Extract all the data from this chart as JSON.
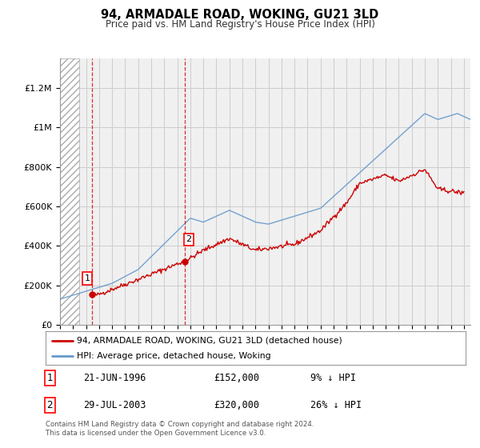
{
  "title": "94, ARMADALE ROAD, WOKING, GU21 3LD",
  "subtitle": "Price paid vs. HM Land Registry's House Price Index (HPI)",
  "ylabel_ticks": [
    "£0",
    "£200K",
    "£400K",
    "£600K",
    "£800K",
    "£1M",
    "£1.2M"
  ],
  "ytick_values": [
    0,
    200000,
    400000,
    600000,
    800000,
    1000000,
    1200000
  ],
  "ylim": [
    0,
    1350000
  ],
  "xlim_start": 1994.0,
  "xlim_end": 2025.5,
  "hatch_end_year": 1995.5,
  "sale1": {
    "year": 1996.47,
    "price": 152000,
    "label": "1"
  },
  "sale2": {
    "year": 2003.57,
    "price": 320000,
    "label": "2"
  },
  "legend_line1": "94, ARMADALE ROAD, WOKING, GU21 3LD (detached house)",
  "legend_line2": "HPI: Average price, detached house, Woking",
  "line_color_red": "#cc0000",
  "line_color_blue": "#6699cc",
  "grid_color": "#cccccc",
  "bg_color": "#ffffff",
  "plot_bg_color": "#f0f0f0",
  "footnote": "Contains HM Land Registry data © Crown copyright and database right 2024.\nThis data is licensed under the Open Government Licence v3.0."
}
